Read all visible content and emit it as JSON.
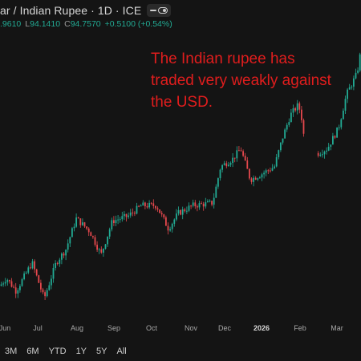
{
  "header": {
    "title": "ar / Indian Rupee · 1D · ICE",
    "ohlc": {
      "open_partial": ".9610",
      "low_label": "L",
      "low": "94.1410",
      "close_label": "C",
      "close": "94.7570",
      "change": "+0.5100 (+0.54%)"
    }
  },
  "annotation": "The Indian rupee has traded very weakly against the USD.",
  "timescale": {
    "buttons": [
      "3M",
      "6M",
      "YTD",
      "1Y",
      "5Y",
      "All"
    ]
  },
  "colors": {
    "up": "#22ab94",
    "down": "#e5484d",
    "annotation": "#e01d1d",
    "background": "#141414"
  },
  "chart_data": {
    "type": "candlestick",
    "x_tick_labels": [
      "Jun",
      "Jul",
      "Aug",
      "Sep",
      "Oct",
      "Nov",
      "Dec",
      "2026",
      "Feb",
      "Mar"
    ],
    "bold_tick_labels": [
      "2026"
    ],
    "trend_points": [
      [
        0,
        85.7
      ],
      [
        8,
        86.0
      ],
      [
        20,
        85.5
      ],
      [
        40,
        86.6
      ],
      [
        55,
        85.2
      ],
      [
        70,
        86.6
      ],
      [
        82,
        87.1
      ],
      [
        95,
        88.3
      ],
      [
        112,
        87.8
      ],
      [
        126,
        86.9
      ],
      [
        140,
        88.2
      ],
      [
        160,
        88.4
      ],
      [
        176,
        88.8
      ],
      [
        195,
        88.8
      ],
      [
        210,
        87.9
      ],
      [
        222,
        88.5
      ],
      [
        240,
        88.8
      ],
      [
        265,
        88.9
      ],
      [
        275,
        90.3
      ],
      [
        290,
        90.6
      ],
      [
        300,
        91.0
      ],
      [
        312,
        89.8
      ],
      [
        325,
        90.0
      ],
      [
        342,
        90.3
      ],
      [
        352,
        91.4
      ],
      [
        362,
        92.3
      ],
      [
        372,
        92.7
      ],
      [
        378,
        91.9
      ],
      [
        380,
        90.5
      ],
      [
        395,
        90.8
      ],
      [
        408,
        91.0
      ],
      [
        422,
        91.8
      ],
      [
        432,
        93.1
      ],
      [
        445,
        93.9
      ],
      [
        450,
        94.8
      ]
    ],
    "gap_start_index": 28,
    "y_range": [
      84.5,
      95.5
    ]
  }
}
